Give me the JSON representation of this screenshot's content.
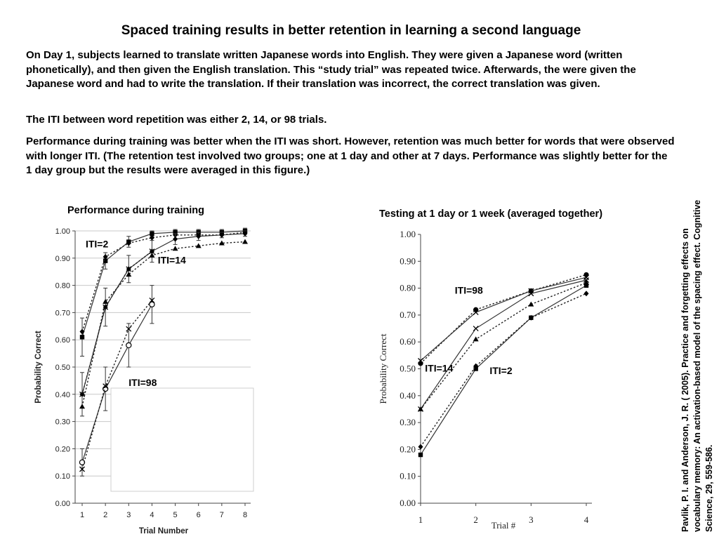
{
  "slide": {
    "title": "Spaced training results in better retention in learning a second language",
    "paragraphs": [
      "On Day 1, subjects learned to translate written Japanese words into English.  They were given a Japanese word (written phonetically), and then given the English translation.  This “study trial” was repeated twice.  Afterwards, the were given the Japanese word and had to write the translation.  If their translation was incorrect, the correct translation was given.",
      "The ITI between word repetition was either 2, 14, or 98 trials.",
      "Performance during training was better when the ITI was short.  However, retention was much better for words that were observed with longer ITI.  (The retention test involved two groups; one at 1 day and other at 7 days.  Performance was slightly better for the 1 day group but the results were averaged in this figure.)"
    ],
    "citation": "Pavlik, P. I. and Anderson, J. R. ( 2005). Practice and forgetting effects on vocabulary memory: An activation-based model of the spacing effect. Cognitive Science, 29, 559-586."
  },
  "chart_data": [
    {
      "type": "line",
      "title": "Performance during training",
      "xlabel": "Trial Number",
      "ylabel": "Probability Correct",
      "ylim": [
        0,
        1
      ],
      "yticks": [
        "0.00",
        "0.10",
        "0.20",
        "0.30",
        "0.40",
        "0.50",
        "0.60",
        "0.70",
        "0.80",
        "0.90",
        "1.00"
      ],
      "x": [
        1,
        2,
        3,
        4,
        5,
        6,
        7,
        8
      ],
      "grid": true,
      "annotations": [
        {
          "text": "ITI=2",
          "x": 1.15,
          "y": 0.94
        },
        {
          "text": "ITI=14",
          "x": 4.25,
          "y": 0.88
        },
        {
          "text": "ITI=98",
          "x": 3.0,
          "y": 0.43
        }
      ],
      "series": [
        {
          "label": "ITI=2",
          "marker": "square",
          "dash": "solid",
          "x": [
            1,
            2,
            3,
            4,
            5,
            6,
            7,
            8
          ],
          "values": [
            0.61,
            0.89,
            0.96,
            0.99,
            0.995,
            0.995,
            0.995,
            1.0
          ],
          "errors": [
            0.07,
            0.03,
            0.02,
            0.01,
            0.01,
            0.01,
            0.01,
            0.01
          ]
        },
        {
          "label": "ITI=2",
          "marker": "diamond",
          "dash": "dotted",
          "x": [
            1,
            2,
            3,
            4,
            5,
            6,
            7,
            8
          ],
          "values": [
            0.63,
            0.905,
            0.955,
            0.975,
            0.985,
            0.985,
            0.985,
            0.995
          ],
          "errors": []
        },
        {
          "label": "ITI=14",
          "marker": "diamond",
          "dash": "solid",
          "x": [
            1,
            2,
            3,
            4,
            5,
            6,
            7,
            8
          ],
          "values": [
            0.4,
            0.72,
            0.86,
            0.925,
            0.97,
            0.98,
            0.985,
            0.99
          ],
          "errors": [
            0.08,
            0.07,
            0.05,
            0.04,
            0.02,
            0.015,
            0.01,
            0.01
          ]
        },
        {
          "label": "ITI=14",
          "marker": "triangle",
          "dash": "dotted",
          "x": [
            1,
            2,
            3,
            4,
            5,
            6,
            7,
            8
          ],
          "values": [
            0.355,
            0.74,
            0.84,
            0.91,
            0.935,
            0.945,
            0.955,
            0.96
          ],
          "errors": []
        },
        {
          "label": "ITI=14",
          "marker": "x",
          "dash": "dotted",
          "x": [
            1,
            2,
            3,
            4
          ],
          "values": [
            0.4,
            0.72,
            0.86,
            0.925
          ],
          "errors": []
        },
        {
          "label": "ITI=98",
          "marker": "circle-open",
          "dash": "solid",
          "x": [
            1,
            2,
            3,
            4
          ],
          "values": [
            0.15,
            0.42,
            0.58,
            0.73
          ],
          "errors": [
            0.05,
            0.08,
            0.08,
            0.07
          ]
        },
        {
          "label": "ITI=98",
          "marker": "x",
          "dash": "dotted",
          "x": [
            1,
            2,
            3,
            4
          ],
          "values": [
            0.125,
            0.43,
            0.64,
            0.745
          ],
          "errors": []
        }
      ]
    },
    {
      "type": "line",
      "title": "Testing at 1 day or 1 week (averaged together)",
      "xlabel": "Trial #",
      "ylabel": "Probability Correct",
      "ylim": [
        0,
        1
      ],
      "yticks": [
        "0.00",
        "0.10",
        "0.20",
        "0.30",
        "0.40",
        "0.50",
        "0.60",
        "0.70",
        "0.80",
        "0.90",
        "1.00"
      ],
      "x": [
        1,
        2,
        3,
        4
      ],
      "grid": false,
      "annotations": [
        {
          "text": "ITI=98",
          "x": 1.62,
          "y": 0.78
        },
        {
          "text": "ITI=14",
          "x": 1.08,
          "y": 0.49
        },
        {
          "text": "ITI=2",
          "x": 2.25,
          "y": 0.48
        }
      ],
      "series": [
        {
          "label": "ITI=98",
          "marker": "circle",
          "dash": "dotted",
          "x": [
            1,
            2,
            3,
            4
          ],
          "values": [
            0.52,
            0.72,
            0.79,
            0.85
          ]
        },
        {
          "label": "ITI=98",
          "marker": "x",
          "dash": "solid",
          "x": [
            1,
            2,
            3,
            4
          ],
          "values": [
            0.53,
            0.71,
            0.79,
            0.84
          ]
        },
        {
          "label": "ITI=14",
          "marker": "triangle",
          "dash": "dotted",
          "x": [
            1,
            2,
            3,
            4
          ],
          "values": [
            0.35,
            0.61,
            0.74,
            0.82
          ]
        },
        {
          "label": "ITI=14",
          "marker": "x",
          "dash": "solid",
          "x": [
            1,
            2,
            3,
            4
          ],
          "values": [
            0.35,
            0.65,
            0.78,
            0.83
          ]
        },
        {
          "label": "ITI=2",
          "marker": "square",
          "dash": "solid",
          "x": [
            1,
            2,
            3,
            4
          ],
          "values": [
            0.18,
            0.5,
            0.69,
            0.81
          ]
        },
        {
          "label": "ITI=2",
          "marker": "diamond",
          "dash": "dotted",
          "x": [
            1,
            2,
            3,
            4
          ],
          "values": [
            0.21,
            0.51,
            0.69,
            0.78
          ]
        }
      ]
    }
  ]
}
